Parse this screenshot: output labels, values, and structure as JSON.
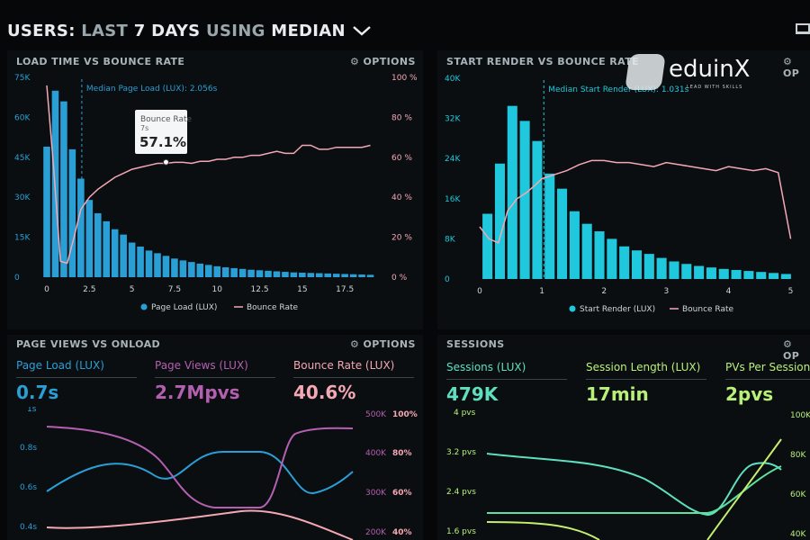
{
  "header": {
    "users": "USERS:",
    "last": "LAST",
    "days": "7 DAYS",
    "using": "USING",
    "median": "MEDIAN",
    "chevron_icon": "chevron-down-icon",
    "monitor_icon": "monitor-icon"
  },
  "logo": {
    "word": "eduinX",
    "tagline": "LEAD WITH SKILLS"
  },
  "panels": {
    "load": {
      "title": "LOAD TIME VS BOUNCE RATE",
      "options": "⚙ OPTIONS"
    },
    "render": {
      "title": "START RENDER VS BOUNCE RATE",
      "options": "⚙ OP"
    },
    "pageviews": {
      "title": "PAGE VIEWS VS ONLOAD",
      "options": "⚙ OPTIONS"
    },
    "sessions": {
      "title": "SESSIONS",
      "options": "⚙ OP"
    }
  },
  "metrics": {
    "pageviews": [
      {
        "label": "Page Load (LUX)",
        "value": "0.7s",
        "color": "#2a9fd6"
      },
      {
        "label": "Page Views (LUX)",
        "value": "2.7Mpvs",
        "color": "#b55fb0"
      },
      {
        "label": "Bounce Rate (LUX)",
        "value": "40.6%",
        "color": "#f4a7b4"
      }
    ],
    "sessions": [
      {
        "label": "Sessions (LUX)",
        "value": "479K",
        "color": "#5ee0c0"
      },
      {
        "label": "Session Length (LUX)",
        "value": "17min",
        "color": "#b9f07a"
      },
      {
        "label": "PVs Per Session (",
        "value": "2pvs",
        "color": "#b9f07a"
      }
    ]
  },
  "colors": {
    "blue_bar": "#2a9fd6",
    "cyan_bar": "#1fc8dc",
    "pink": "#f4a7b4",
    "purple": "#b55fb0",
    "green": "#5ee0a0",
    "lime": "#c6ee6e"
  },
  "chart_data": [
    {
      "type": "bar",
      "title": "LOAD TIME VS BOUNCE RATE",
      "x": [
        0,
        0.5,
        1,
        1.5,
        2,
        2.5,
        3,
        3.5,
        4,
        4.5,
        5,
        5.5,
        6,
        6.5,
        7,
        7.5,
        8,
        8.5,
        9,
        9.5,
        10,
        10.5,
        11,
        11.5,
        12,
        12.5,
        13,
        13.5,
        14,
        14.5,
        15,
        15.5,
        16,
        16.5,
        17,
        17.5,
        18,
        18.5,
        19
      ],
      "xticks": [
        "0",
        "2.5",
        "5",
        "7.5",
        "10",
        "12.5",
        "15",
        "17.5"
      ],
      "xlim": [
        0,
        19.5
      ],
      "yticks_left": [
        "0",
        "15K",
        "30K",
        "45K",
        "60K",
        "75K"
      ],
      "ylim_left": [
        0,
        75000
      ],
      "yticks_right": [
        "0 %",
        "20 %",
        "40 %",
        "60 %",
        "80 %",
        "100 %"
      ],
      "ylim_right": [
        0,
        100
      ],
      "series": [
        {
          "name": "Page Load (LUX)",
          "axis": "left",
          "kind": "bar",
          "values": [
            49000,
            70000,
            66000,
            48000,
            37000,
            29000,
            24000,
            21000,
            18000,
            16000,
            13000,
            11500,
            10000,
            9000,
            8000,
            7000,
            6300,
            5700,
            5100,
            4600,
            4100,
            3700,
            3400,
            3100,
            2800,
            2600,
            2400,
            2200,
            2000,
            1800,
            1700,
            1600,
            1500,
            1400,
            1300,
            1200,
            1100,
            1000,
            900
          ]
        },
        {
          "name": "Bounce Rate",
          "axis": "right",
          "kind": "line",
          "x": [
            0,
            0.4,
            0.8,
            1.2,
            1.6,
            2,
            2.5,
            3,
            3.5,
            4,
            4.5,
            5,
            5.5,
            6,
            6.5,
            7,
            7.5,
            8,
            8.5,
            9,
            9.5,
            10,
            10.5,
            11,
            11.5,
            12,
            12.5,
            13,
            13.5,
            14,
            14.5,
            15,
            15.5,
            16,
            16.5,
            17,
            17.5,
            18,
            18.5,
            19
          ],
          "values": [
            96,
            55,
            8,
            7,
            20,
            34,
            40,
            44,
            47,
            50,
            52,
            54,
            55,
            56,
            57,
            57,
            57.5,
            57.5,
            57,
            58,
            58,
            59,
            59,
            60,
            60,
            61,
            61,
            62,
            63,
            62,
            62,
            66,
            66,
            64,
            64,
            65,
            65,
            65,
            65,
            66
          ]
        }
      ],
      "annotation": "Median Page Load (LUX): 2.056s",
      "annotation_x": 2.056,
      "tooltip": {
        "label": "Bounce Rate",
        "sub": "7s",
        "value": "57.1%"
      },
      "legend": [
        "Page Load (LUX)",
        "Bounce Rate"
      ],
      "legend_position": "bottom"
    },
    {
      "type": "bar",
      "title": "START RENDER VS BOUNCE RATE",
      "x": [
        0.125,
        0.325,
        0.525,
        0.725,
        0.925,
        1.125,
        1.325,
        1.525,
        1.725,
        1.925,
        2.125,
        2.325,
        2.525,
        2.725,
        2.925,
        3.125,
        3.325,
        3.525,
        3.725,
        3.925,
        4.125,
        4.325,
        4.525,
        4.725,
        4.925
      ],
      "xticks": [
        "0",
        "1",
        "2",
        "3",
        "4",
        "5"
      ],
      "xlim": [
        0,
        5.05
      ],
      "yticks_left": [
        "0",
        "8K",
        "16K",
        "24K",
        "32K",
        "40K"
      ],
      "ylim_left": [
        0,
        40000
      ],
      "series": [
        {
          "name": "Start Render (LUX)",
          "axis": "left",
          "kind": "bar",
          "values": [
            13000,
            23000,
            34500,
            31500,
            27500,
            21000,
            18000,
            13500,
            11000,
            9500,
            8000,
            6500,
            5700,
            5000,
            4200,
            3500,
            3000,
            2600,
            2300,
            2000,
            1800,
            1600,
            1400,
            1200,
            1000
          ]
        },
        {
          "name": "Bounce Rate",
          "axis": "right",
          "kind": "line",
          "x": [
            0,
            0.15,
            0.3,
            0.45,
            0.6,
            0.75,
            0.9,
            1.0,
            1.2,
            1.4,
            1.6,
            1.8,
            2.0,
            2.2,
            2.4,
            2.6,
            2.8,
            3.0,
            3.2,
            3.4,
            3.6,
            3.8,
            4.0,
            4.2,
            4.4,
            4.6,
            4.8,
            5.0
          ],
          "values": [
            26,
            20,
            18,
            34,
            40,
            43,
            47,
            50,
            52,
            54,
            57,
            59,
            59,
            58,
            58,
            57,
            56,
            58,
            57,
            56,
            55,
            54,
            56,
            55,
            54,
            55,
            53,
            20
          ]
        }
      ],
      "annotation": "Median Start Render (LUX): 1.031s",
      "annotation_x": 1.031,
      "legend": [
        "Start Render (LUX)",
        "Bounce Rate"
      ],
      "legend_position": "bottom"
    },
    {
      "type": "line",
      "title": "PAGE VIEWS VS ONLOAD",
      "yticks_left": [
        "1s",
        "0.8s",
        "0.6s",
        "0.4s"
      ],
      "yticks_right_a": [
        "500K",
        "400K",
        "300K",
        "200K"
      ],
      "yticks_right_b": [
        "100%",
        "80%",
        "60%",
        "40%"
      ]
    },
    {
      "type": "line",
      "title": "SESSIONS",
      "yticks_left": [
        "4 pvs",
        "3.2 pvs",
        "2.4 pvs",
        "1.6 pvs"
      ],
      "yticks_right": [
        "100K",
        "80K",
        "60K",
        "40K"
      ]
    }
  ]
}
